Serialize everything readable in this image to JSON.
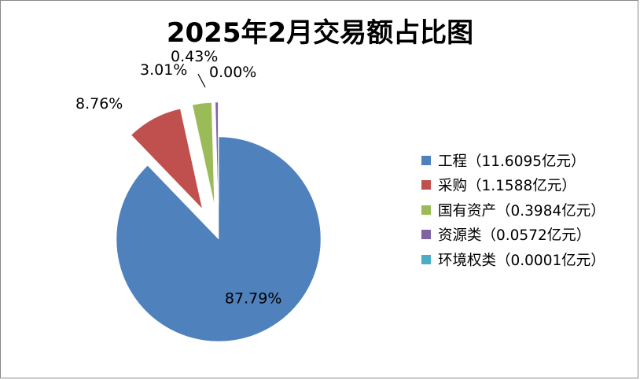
{
  "chart_data": {
    "type": "pie",
    "title": "2025年2月交易额占比图",
    "slices": [
      {
        "label": "工程（11.6095亿元）",
        "value": 11.6095,
        "percent_label": "87.79%",
        "color": "#4F81BD",
        "exploded": false
      },
      {
        "label": "采购（1.1588亿元）",
        "value": 1.1588,
        "percent_label": "8.76%",
        "color": "#C0504D",
        "exploded": true
      },
      {
        "label": "国有资产（0.3984亿元）",
        "value": 0.3984,
        "percent_label": "3.01%",
        "color": "#9BBB59",
        "exploded": true
      },
      {
        "label": "资源类（0.0572亿元）",
        "value": 0.0572,
        "percent_label": "0.43%",
        "color": "#8064A2",
        "exploded": true
      },
      {
        "label": "环境权类（0.0001亿元）",
        "value": 0.0001,
        "percent_label": "0.00%",
        "color": "#4BACC6",
        "exploded": true
      }
    ],
    "legend_position": "right"
  }
}
